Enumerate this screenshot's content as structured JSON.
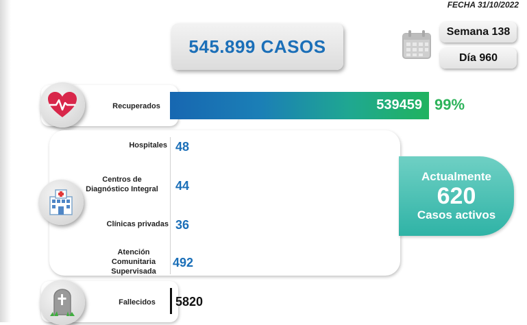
{
  "header": {
    "date": "FECHA 31/10/2022",
    "total_cases": "545.899 CASOS",
    "week": "Semana 138",
    "day": "Día 960"
  },
  "recovered": {
    "label": "Recuperados",
    "value": "539459",
    "percent": "99%",
    "fraction": 0.99
  },
  "locations": [
    {
      "label": "Hospitales",
      "value": "48"
    },
    {
      "label": "Centros de\nDiagnóstico Integral",
      "value": "44"
    },
    {
      "label": "Clínicas privadas",
      "value": "36"
    },
    {
      "label": "Atención\nComunitaria\nSupervisada",
      "value": "492"
    }
  ],
  "active": {
    "line1": "Actualmente",
    "number": "620",
    "line2": "Casos activos"
  },
  "deceased": {
    "label": "Fallecidos",
    "value": "5820"
  },
  "colors": {
    "blue": "#1b6fb8",
    "green": "#2db35a",
    "teal": "#2fb3a6",
    "heart": "#d8274a"
  }
}
